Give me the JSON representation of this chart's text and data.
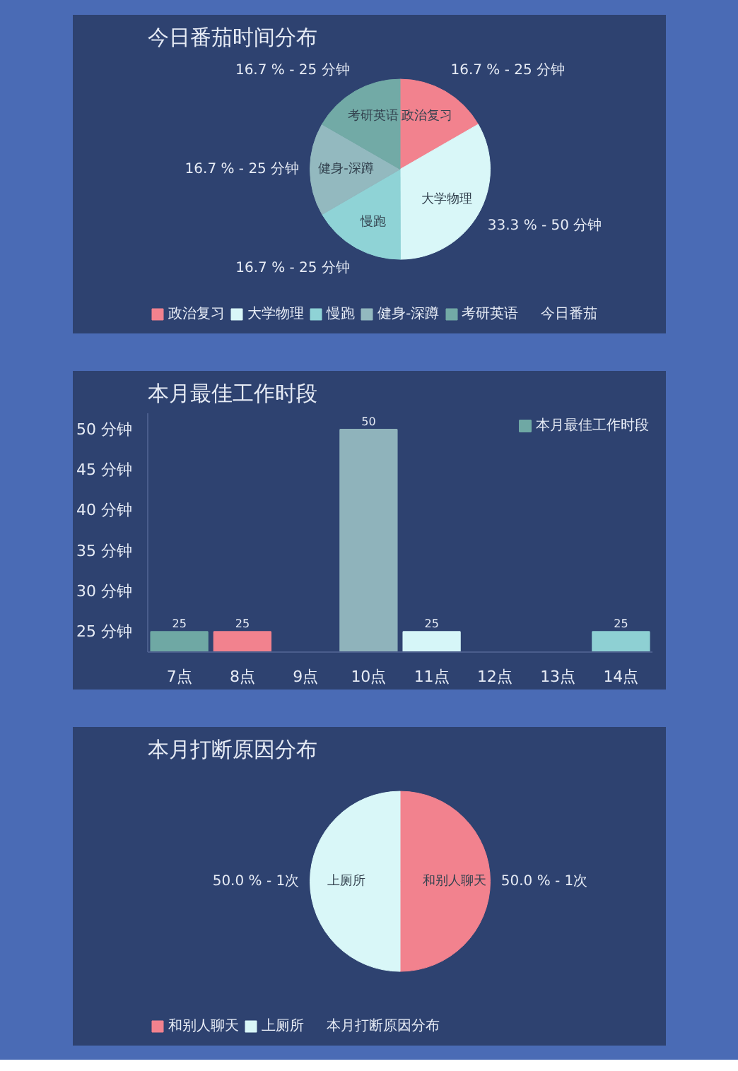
{
  "chart_data": [
    {
      "type": "pie",
      "title": "今日番茄时间分布",
      "legend_title": "今日番茄",
      "legend": "bottom",
      "categories": [
        "政治复习",
        "大学物理",
        "慢跑",
        "健身-深蹲",
        "考研英语"
      ],
      "values": [
        16.7,
        33.3,
        16.7,
        16.7,
        16.7
      ],
      "colors": [
        "#f2828e",
        "#d9f7f8",
        "#8fd3d6",
        "#93b9bf",
        "#72aaa6"
      ],
      "value_labels": [
        "16.7 % - 25 分钟",
        "33.3 % - 50 分钟",
        "16.7 % - 25 分钟",
        "16.7 % - 25 分钟",
        "16.7 % - 25 分钟"
      ]
    },
    {
      "type": "bar",
      "title": "本月最佳工作时段",
      "legend": "top right",
      "data_labels": true,
      "grid": false,
      "categories": [
        "7点",
        "8点",
        "9点",
        "10点",
        "11点",
        "12点",
        "13点",
        "14点"
      ],
      "series": [
        {
          "name": "本月最佳工作时段",
          "values": [
            25,
            25,
            null,
            50,
            25,
            null,
            null,
            25
          ],
          "colors": [
            "#6fa8a4",
            "#f2828e",
            "#8fd3d6",
            "#8fb3bb",
            "#d6f6f8",
            "#93b9bf",
            "#72aaa6",
            "#8ed0d3"
          ]
        }
      ],
      "ylim": [
        22.5,
        52
      ],
      "yticks": [
        {
          "value": 25,
          "label": "25 分钟"
        },
        {
          "value": 30,
          "label": "30 分钟"
        },
        {
          "value": 35,
          "label": "35 分钟"
        },
        {
          "value": 40,
          "label": "40 分钟"
        },
        {
          "value": 45,
          "label": "45 分钟"
        },
        {
          "value": 50,
          "label": "50 分钟"
        }
      ]
    },
    {
      "type": "pie",
      "title": "本月打断原因分布",
      "legend_title": "本月打断原因分布",
      "legend": "bottom",
      "categories": [
        "和别人聊天",
        "上厕所"
      ],
      "values": [
        50.0,
        50.0
      ],
      "colors": [
        "#f2828e",
        "#d9f7f8"
      ],
      "value_labels": [
        "50.0 % - 1次",
        "50.0 % - 1次"
      ]
    }
  ]
}
